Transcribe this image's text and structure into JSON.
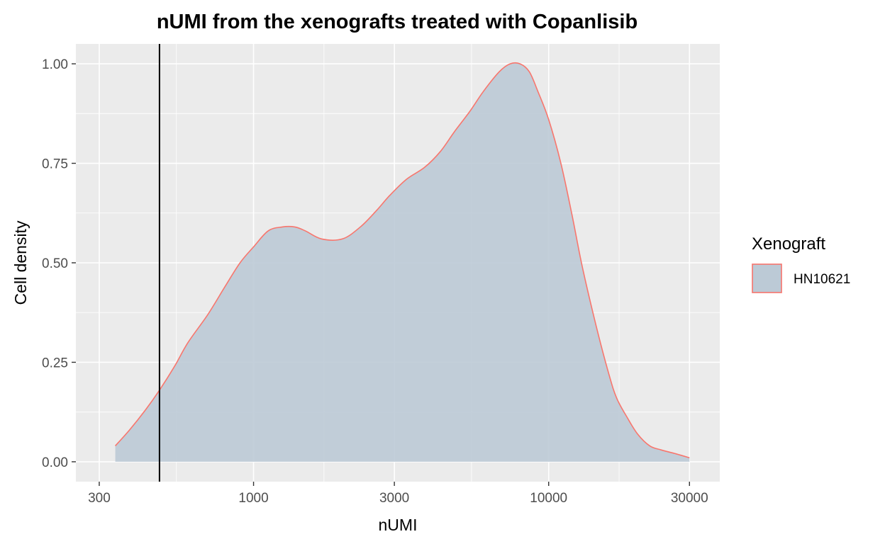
{
  "chart_data": {
    "type": "area",
    "title": "nUMI from the xenografts treated with Copanlisib",
    "xlabel": "nUMI",
    "ylabel": "Cell density",
    "x_scale": "log10",
    "xlim": [
      250,
      38000
    ],
    "ylim": [
      -0.05,
      1.05
    ],
    "x_ticks": [
      300,
      1000,
      3000,
      10000,
      30000
    ],
    "x_tick_labels": [
      "300",
      "1000",
      "3000",
      "10000",
      "30000"
    ],
    "y_ticks": [
      0,
      0.25,
      0.5,
      0.75,
      1
    ],
    "y_tick_labels": [
      "0.00",
      "0.25",
      "0.50",
      "0.75",
      "1.00"
    ],
    "grid": true,
    "vline_x": 480,
    "legend": {
      "title": "Xenograft",
      "position": "right",
      "entries": [
        "HN10621"
      ]
    },
    "series": [
      {
        "name": "HN10621",
        "fill_color": "#bccad6",
        "line_color": "#f8766d",
        "x": [
          340,
          380,
          430,
          480,
          540,
          600,
          700,
          800,
          900,
          1000,
          1120,
          1250,
          1380,
          1500,
          1700,
          2000,
          2300,
          2600,
          2900,
          3300,
          3800,
          4300,
          4800,
          5400,
          6000,
          6800,
          7400,
          8000,
          8600,
          9200,
          10000,
          11000,
          12000,
          13000,
          14500,
          16000,
          17000,
          18500,
          20000,
          22000,
          24000,
          27000,
          30000
        ],
        "y": [
          0.04,
          0.08,
          0.13,
          0.18,
          0.24,
          0.3,
          0.37,
          0.44,
          0.5,
          0.54,
          0.58,
          0.59,
          0.59,
          0.58,
          0.56,
          0.56,
          0.59,
          0.63,
          0.67,
          0.71,
          0.74,
          0.78,
          0.83,
          0.88,
          0.93,
          0.98,
          1.0,
          1.0,
          0.98,
          0.93,
          0.86,
          0.75,
          0.62,
          0.49,
          0.34,
          0.22,
          0.16,
          0.11,
          0.07,
          0.04,
          0.03,
          0.02,
          0.01
        ]
      }
    ]
  }
}
